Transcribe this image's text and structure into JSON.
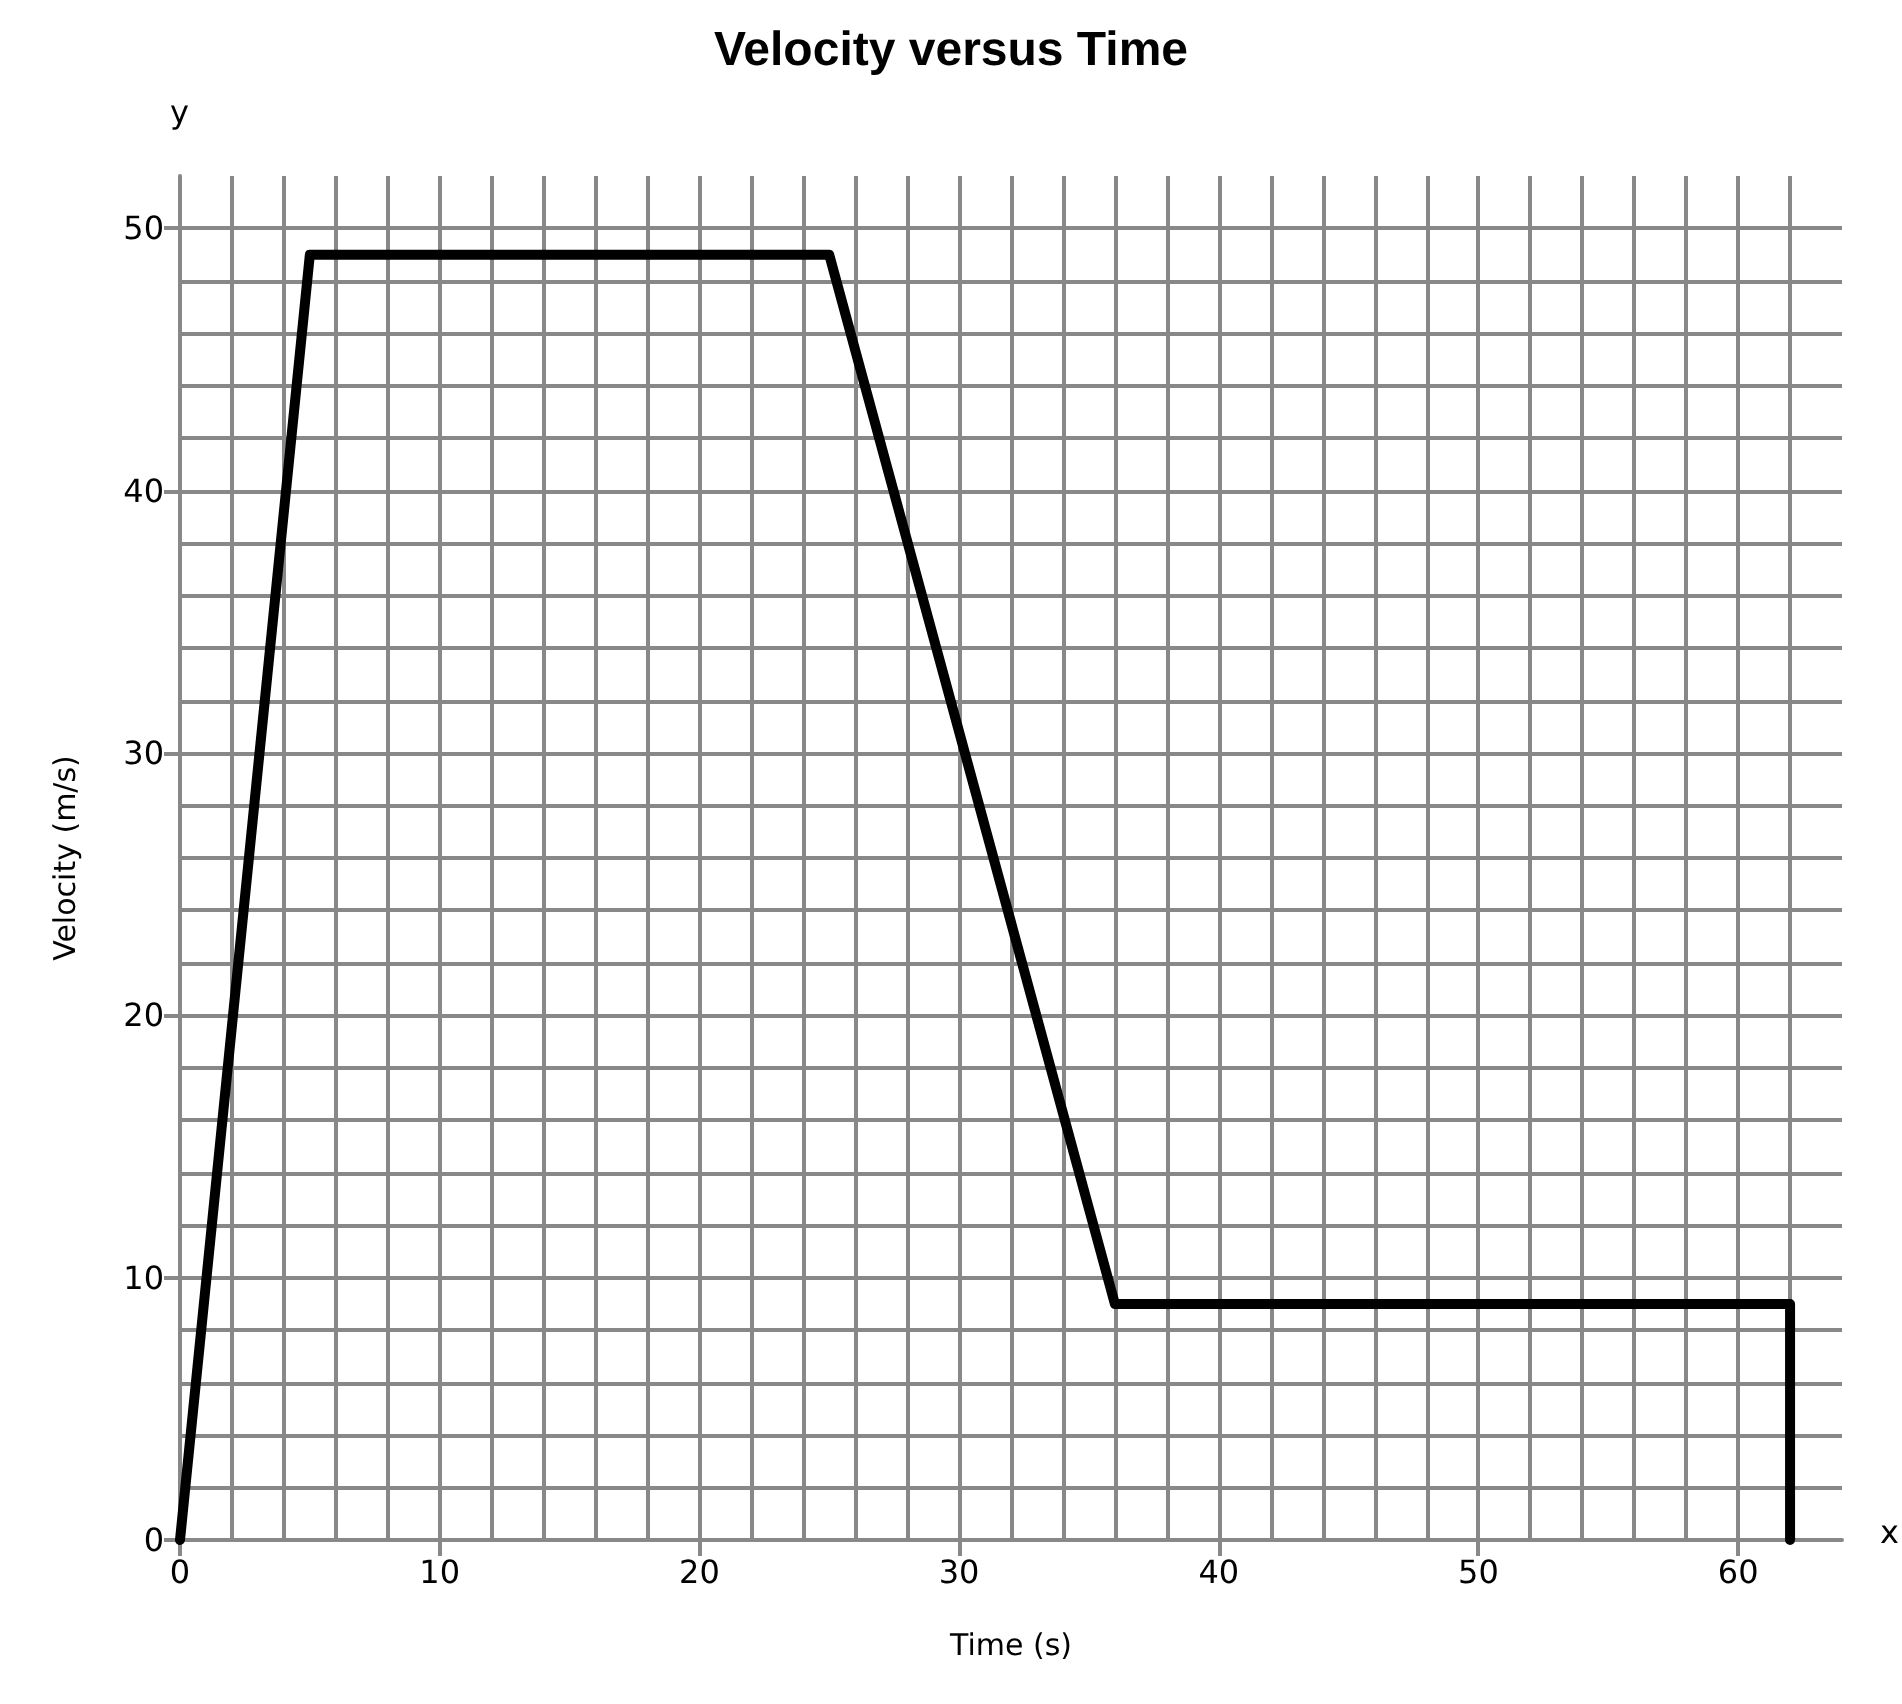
{
  "chart_data": {
    "type": "line",
    "title": "Velocity versus Time",
    "xlabel": "Time (s)",
    "ylabel": "Velocity (m/s)",
    "annotations": [
      "x",
      "y"
    ],
    "x": [
      0,
      5,
      25,
      36,
      62,
      62
    ],
    "series": [
      {
        "color": "#000000",
        "values": [
          0,
          49,
          49,
          9,
          9,
          0
        ]
      }
    ],
    "xlim": [
      0,
      64
    ],
    "xticks": [
      0,
      10,
      20,
      30,
      40,
      50,
      60
    ],
    "ylim": [
      0,
      52
    ],
    "yticks": [
      0,
      10,
      20,
      30,
      40,
      50
    ],
    "grid": true,
    "marker": "none",
    "line_style": "solid"
  }
}
